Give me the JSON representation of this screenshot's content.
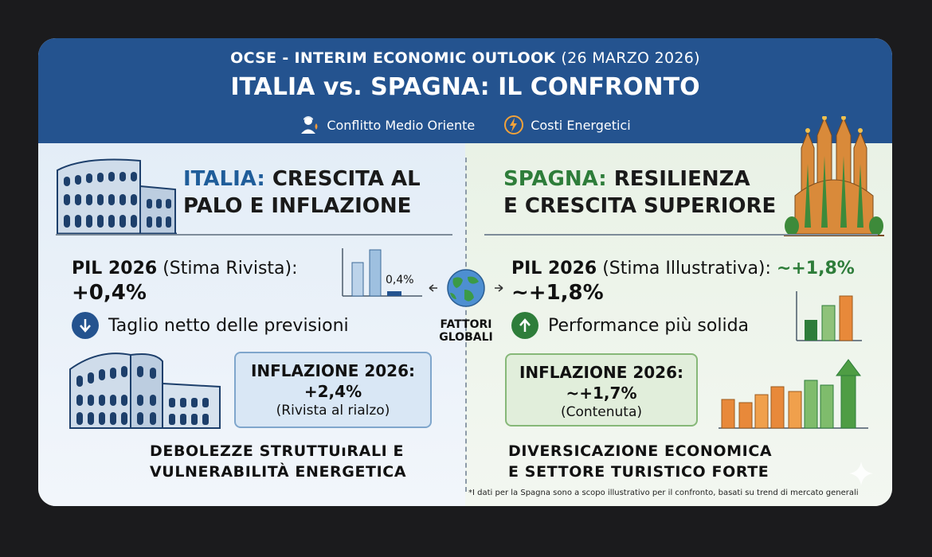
{
  "header": {
    "subtitle_bold": "OCSE - INTERIM ECONOMIC OUTLOOK",
    "subtitle_date": "(26 MARZO 2026)",
    "title": "ITALIA vs. SPAGNA: IL CONFRONTO",
    "tags": [
      {
        "icon": "soldier-icon",
        "label": "Conflitto Medio Oriente"
      },
      {
        "icon": "lightning-icon",
        "label": "Costi Energetici"
      }
    ]
  },
  "italy": {
    "name": "ITALIA:",
    "title_rest_1": "CRESCITA AL",
    "title_line_2": "PALO E INFLAZIONE",
    "pil_label": "PIL 2026",
    "pil_qualifier": "(Stima Rivista):",
    "pil_value": "+0,4%",
    "chart_label": "0,4%",
    "note": "Taglio netto delle previsioni",
    "inflation_title": "INFLAZIONE 2026:",
    "inflation_value": "+2,4%",
    "inflation_note": "(Rivista al rialzo)",
    "bottom_1": "DEBOLEZZE STRUTTUıRALI E",
    "bottom_2": "VULNERABILITÀ ENERGETICA"
  },
  "spain": {
    "name": "SPAGNA:",
    "title_rest_1": "RESILIENZA",
    "title_line_2": "E CRESCITA SUPERIORE",
    "pil_label": "PIL 2026",
    "pil_qualifier": "(Stima Illustrativa):",
    "pil_inline": "~+1,8%",
    "pil_value": "~+1,8%",
    "note": "Performance più solida",
    "inflation_title": "INFLAZIONE 2026:",
    "inflation_value": "~+1,7%",
    "inflation_note": "(Contenuta)",
    "bottom_1": "DIVERSICAZIONE ECONOMICA",
    "bottom_2": "E SETTORE TURISTICO FORTE"
  },
  "center": {
    "label_1": "FATTORI",
    "label_2": "GLOBALI"
  },
  "footnote": "*I dati per la Spagna sono a scopo illustrativo per il confronto, basati su trend di mercato generali",
  "colors": {
    "header": "#24538f",
    "italy_accent": "#1f5d9a",
    "spain_accent": "#2e7d3a",
    "orange": "#e8893a"
  }
}
